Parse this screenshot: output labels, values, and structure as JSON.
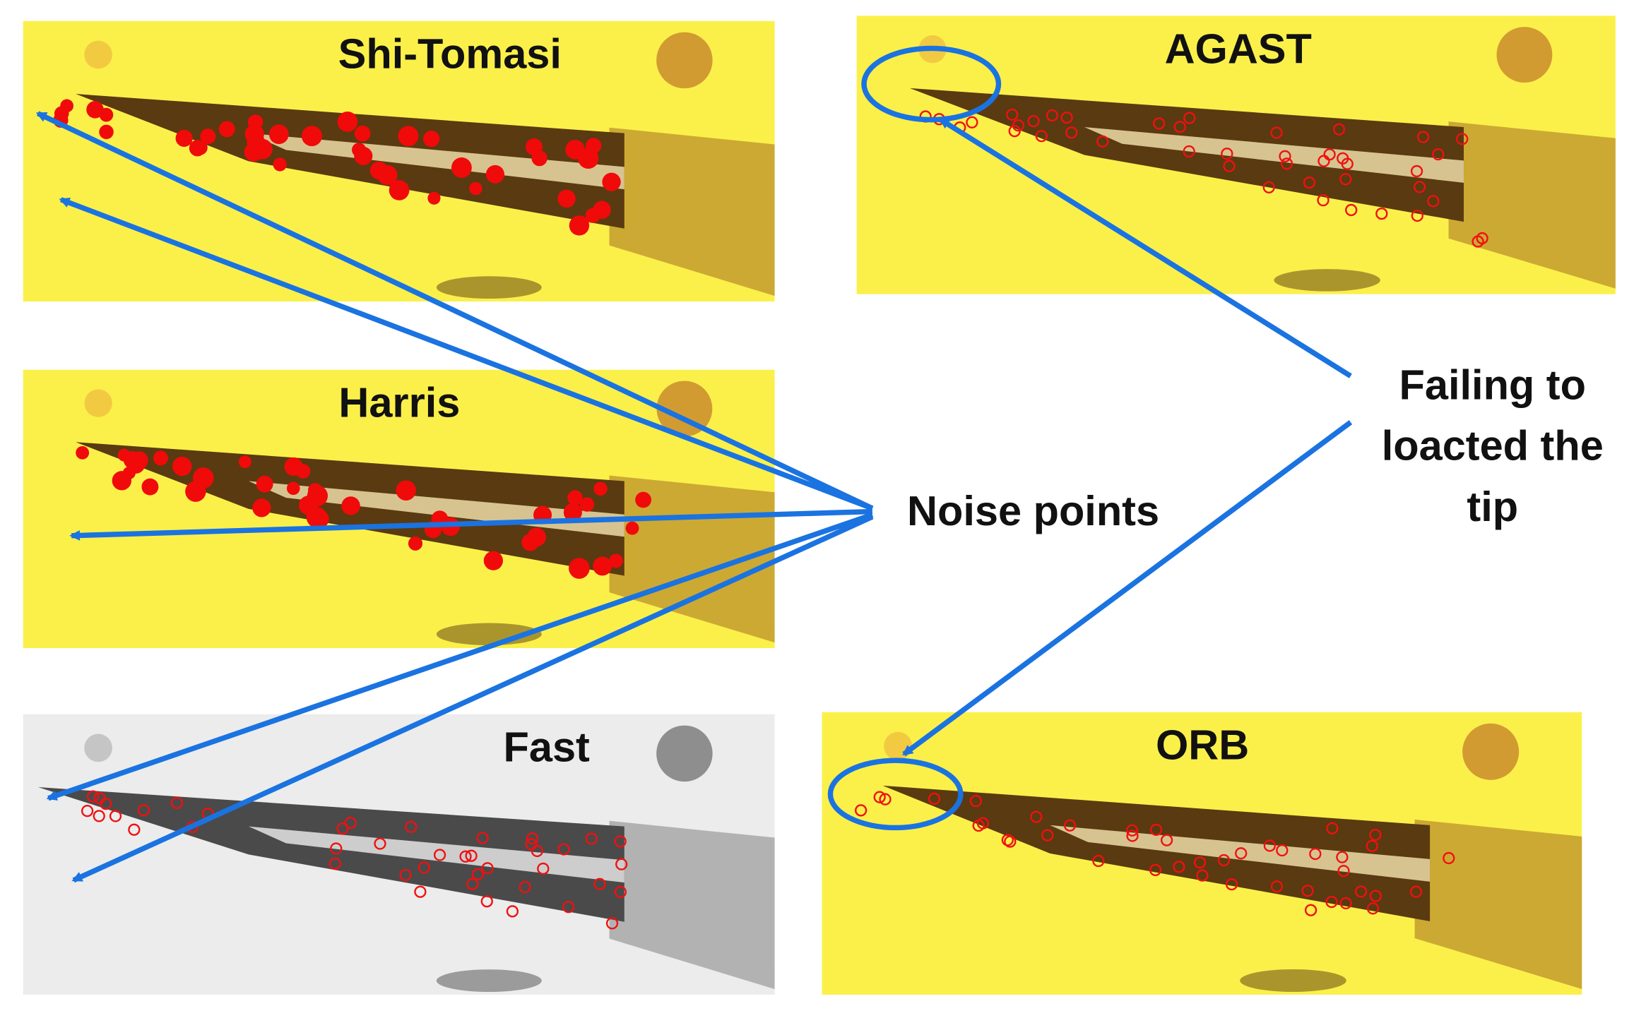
{
  "panels": [
    {
      "title": "Shi-Tomasi"
    },
    {
      "title": "AGAST"
    },
    {
      "title": "Harris"
    },
    {
      "title": "Fast"
    },
    {
      "title": "ORB"
    }
  ],
  "annotations": {
    "noise": "Noise points",
    "failing": [
      "Failing to",
      "loacted the",
      "tip"
    ]
  }
}
